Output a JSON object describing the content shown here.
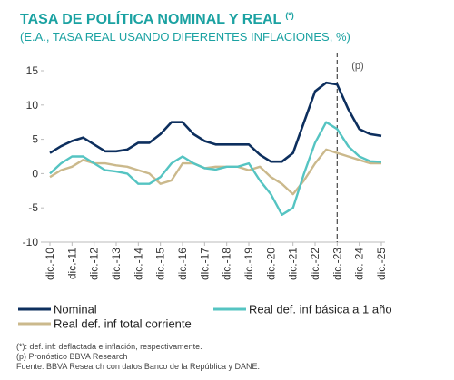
{
  "chart_data": {
    "type": "line",
    "title": "TASA DE POLÍTICA NOMINAL Y REAL",
    "title_note": "(*)",
    "subtitle": "(E.A., TASA REAL USANDO DIFERENTES INFLACIONES, %)",
    "annotation": "(p)",
    "forecast_start": "2023-12",
    "x": [
      "2010-12",
      "2011-06",
      "2011-12",
      "2012-06",
      "2012-12",
      "2013-06",
      "2013-12",
      "2014-06",
      "2014-12",
      "2015-06",
      "2015-12",
      "2016-06",
      "2016-12",
      "2017-06",
      "2017-12",
      "2018-06",
      "2018-12",
      "2019-06",
      "2019-12",
      "2020-06",
      "2020-12",
      "2021-06",
      "2021-12",
      "2022-06",
      "2022-12",
      "2023-06",
      "2023-12",
      "2024-06",
      "2024-12",
      "2025-06",
      "2025-12"
    ],
    "xticks": [
      {
        "value": "2010-12",
        "label": "dic.-10"
      },
      {
        "value": "2011-12",
        "label": "dic.-11"
      },
      {
        "value": "2012-12",
        "label": "dic.-12"
      },
      {
        "value": "2013-12",
        "label": "dic.-13"
      },
      {
        "value": "2014-12",
        "label": "dic.-14"
      },
      {
        "value": "2015-12",
        "label": "dic.-15"
      },
      {
        "value": "2016-12",
        "label": "dic.-16"
      },
      {
        "value": "2017-12",
        "label": "dic.-17"
      },
      {
        "value": "2018-12",
        "label": "dic.-18"
      },
      {
        "value": "2019-12",
        "label": "dic.-19"
      },
      {
        "value": "2020-12",
        "label": "dic.-20"
      },
      {
        "value": "2021-12",
        "label": "dic.-21"
      },
      {
        "value": "2022-12",
        "label": "dic.-22"
      },
      {
        "value": "2023-12",
        "label": "dic.-23"
      },
      {
        "value": "2024-12",
        "label": "dic.-24"
      },
      {
        "value": "2025-12",
        "label": "dic.-25"
      }
    ],
    "ylim": [
      -10,
      15
    ],
    "yticks": [
      -10,
      -5,
      0,
      5,
      10,
      15
    ],
    "series": [
      {
        "name": "Nominal",
        "color": "#0d2f5e",
        "values": [
          3.0,
          4.0,
          4.75,
          5.25,
          4.25,
          3.25,
          3.25,
          3.5,
          4.5,
          4.5,
          5.75,
          7.5,
          7.5,
          5.75,
          4.75,
          4.25,
          4.25,
          4.25,
          4.25,
          2.75,
          1.75,
          1.75,
          3.0,
          7.5,
          12.0,
          13.25,
          13.0,
          9.4,
          6.5,
          5.75,
          5.5
        ]
      },
      {
        "name": "Real def. inf básica a 1 año",
        "color": "#55c4c2",
        "values": [
          0,
          1.5,
          2.5,
          2.5,
          1.5,
          0.5,
          0.3,
          0,
          -1.5,
          -1.5,
          -0.5,
          1.5,
          2.5,
          1.5,
          0.8,
          0.6,
          1.0,
          1.0,
          1.5,
          -1,
          -3,
          -6,
          -5,
          0,
          4.5,
          7.5,
          6.5,
          4,
          2.5,
          1.8,
          1.7
        ]
      },
      {
        "name": "Real def. inf total corriente",
        "color": "#cbb98c",
        "values": [
          -0.5,
          0.5,
          1.0,
          2.0,
          1.5,
          1.5,
          1.2,
          1.0,
          0.5,
          0,
          -1.5,
          -1,
          1.5,
          1.5,
          0.8,
          1.0,
          1.0,
          1.0,
          0.5,
          1.0,
          -0.5,
          -1.5,
          -3,
          -1,
          1.5,
          3.5,
          3.0,
          2.5,
          2.0,
          1.5,
          1.5
        ]
      }
    ],
    "footnotes": [
      "(*): def. inf: deflactada e inflación, respectivamente.",
      "(p) Pronóstico BBVA Research",
      "Fuente: BBVA Research con datos Banco de la República y DANE."
    ]
  }
}
